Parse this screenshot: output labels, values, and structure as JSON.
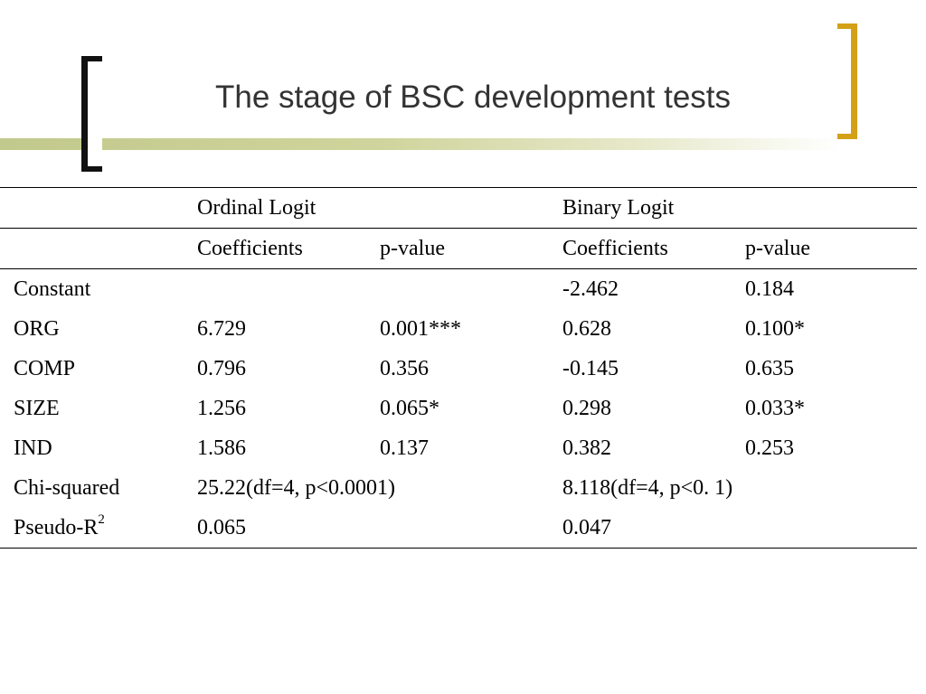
{
  "slide": {
    "title": "The stage of BSC development tests"
  },
  "table": {
    "header_row1": [
      "",
      "Ordinal Logit",
      "",
      "Binary Logit",
      ""
    ],
    "header_row2": [
      "",
      "Coefficients",
      "p-value",
      "Coefficients",
      "p-value"
    ],
    "rows": [
      {
        "label": "Constant",
        "ord_coef": "",
        "ord_p": "",
        "bin_coef": "-2.462",
        "bin_p": "0.184"
      },
      {
        "label": "ORG",
        "ord_coef": "6.729",
        "ord_p": "0.001***",
        "bin_coef": "0.628",
        "bin_p": "0.100*"
      },
      {
        "label": "COMP",
        "ord_coef": "0.796",
        "ord_p": "0.356",
        "bin_coef": "-0.145",
        "bin_p": "0.635"
      },
      {
        "label": "SIZE",
        "ord_coef": "1.256",
        "ord_p": "0.065*",
        "bin_coef": "0.298",
        "bin_p": "0.033*"
      },
      {
        "label": "IND",
        "ord_coef": "1.586",
        "ord_p": "0.137",
        "bin_coef": "0.382",
        "bin_p": "0.253"
      }
    ],
    "chi_squared": {
      "label": "Chi-squared",
      "ordinal": "25.22(df=4, p<0.0001)",
      "binary": "8.118(df=4, p<0. 1)"
    },
    "pseudo_r2": {
      "label": "Pseudo-R",
      "superscript": "2",
      "ordinal": "0.065",
      "binary": "0.047"
    }
  }
}
